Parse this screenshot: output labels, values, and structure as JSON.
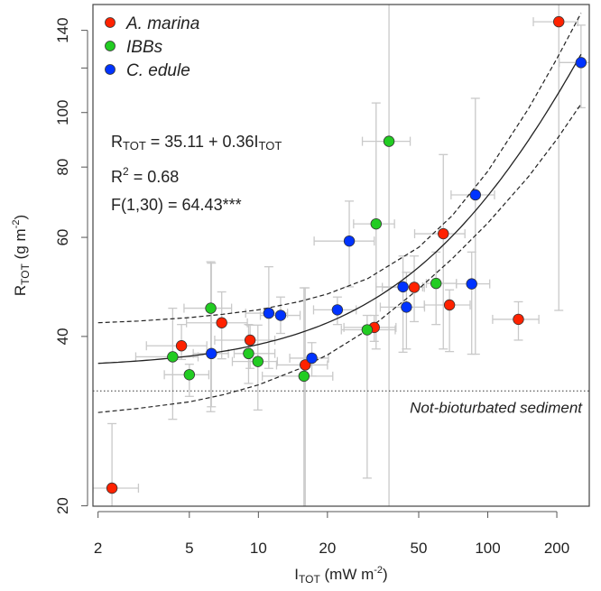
{
  "chart_data": {
    "type": "scatter",
    "scale": {
      "x": "log",
      "y": "log"
    },
    "xlim": [
      1.9,
      277
    ],
    "ylim": [
      19.97,
      155.6
    ],
    "grid": false,
    "xlabel": {
      "main": "I",
      "sub": "TOT",
      "rest": " (mW m",
      "sup": "-2",
      "end": ")"
    },
    "ylabel": {
      "main": "R",
      "sub": "TOT",
      "rest": " (g m",
      "sup": "-2",
      "end": ")"
    },
    "x_ticks": [
      2,
      5,
      10,
      20,
      50,
      100,
      200
    ],
    "x_tick_labels": [
      "2",
      "5",
      "10",
      "20",
      "50",
      "100",
      "200"
    ],
    "y_ticks": [
      20,
      40,
      60,
      80,
      100,
      120,
      140
    ],
    "y_tick_labels": [
      "20",
      "40",
      "60",
      "80",
      "100",
      "",
      "140"
    ],
    "legend": {
      "placement": "top-left",
      "entries": [
        {
          "label": "A. marina",
          "color": "#ff2200"
        },
        {
          "label": "IBBs",
          "color": "#22cc22"
        },
        {
          "label": "C. edule",
          "color": "#0033ff"
        }
      ]
    },
    "series": [
      {
        "name": "A. marina",
        "color": "#ff2200",
        "points": [
          {
            "x": 2.3,
            "y": 21.5,
            "xerr": [
              1.9,
              3.0
            ],
            "yerr": [
              18,
              28
            ]
          },
          {
            "x": 4.62,
            "y": 38.5,
            "xerr": [
              3.25,
              5.96
            ],
            "yerr": [
              36.4,
              42
            ]
          },
          {
            "x": 6.92,
            "y": 42.3,
            "xerr": [
              4.86,
              8.95
            ],
            "yerr": [
              36.5,
              48
            ]
          },
          {
            "x": 9.2,
            "y": 39.4,
            "xerr": [
              6.45,
              11.8
            ],
            "yerr": [
              35.1,
              41.9
            ]
          },
          {
            "x": 16.0,
            "y": 35.6,
            "xerr": [
              12.0,
              20.0
            ],
            "yerr": [
              18,
              48.8
            ]
          },
          {
            "x": 32.0,
            "y": 41.5,
            "xerr": [
              23.6,
              39.8
            ],
            "yerr": [
              39.2,
              43.6
            ]
          },
          {
            "x": 47.8,
            "y": 48.9,
            "xerr": [
              34.7,
              52.9
            ],
            "yerr": [
              42.5,
              55.6
            ]
          },
          {
            "x": 68.1,
            "y": 45.5,
            "xerr": [
              52.9,
              83.8
            ],
            "yerr": [
              37.6,
              48.4
            ]
          },
          {
            "x": 136,
            "y": 42.9,
            "xerr": [
              105,
              167
            ],
            "yerr": [
              39.4,
              46.1
            ]
          },
          {
            "x": 64.0,
            "y": 60.9,
            "xerr": [
              48,
              79.5
            ],
            "yerr": [
              38,
              84.2
            ]
          },
          {
            "x": 204,
            "y": 145,
            "xerr": [
              158,
              247
            ],
            "yerr": [
              44.5,
              160
            ]
          }
        ]
      },
      {
        "name": "IBBs",
        "color": "#22cc22",
        "points": [
          {
            "x": 4.23,
            "y": 36.8,
            "xerr": [
              2.92,
              5.46
            ],
            "yerr": [
              28.5,
              44.9
            ]
          },
          {
            "x": 5.0,
            "y": 34.2,
            "xerr": [
              3.89,
              6.08
            ],
            "yerr": [
              31.3,
              35.7
            ]
          },
          {
            "x": 6.2,
            "y": 44.9,
            "xerr": [
              4.74,
              7.64
            ],
            "yerr": [
              29.4,
              54.3
            ]
          },
          {
            "x": 9.06,
            "y": 37.3,
            "xerr": [
              7.84,
              11.8
            ],
            "yerr": [
              33.0,
              42.0
            ]
          },
          {
            "x": 9.95,
            "y": 36.1,
            "xerr": [
              7.7,
              12.1
            ],
            "yerr": [
              29.6,
              41.9
            ]
          },
          {
            "x": 15.8,
            "y": 34.0,
            "xerr": [
              10.4,
              21.1
            ],
            "yerr": [
              18,
              48.8
            ]
          },
          {
            "x": 29.8,
            "y": 41.1,
            "xerr": [
              23.0,
              39.5
            ],
            "yerr": [
              22.4,
              43.6
            ]
          },
          {
            "x": 59.5,
            "y": 49.7,
            "xerr": [
              54,
              73
            ],
            "yerr": [
              42,
              56.5
            ]
          },
          {
            "x": 32.6,
            "y": 63.4,
            "xerr": [
              26,
              39.2
            ],
            "yerr": [
              38,
              104
            ]
          },
          {
            "x": 37.1,
            "y": 88.9,
            "xerr": [
              28.4,
              45.9
            ],
            "yerr": [
              18,
              160
            ]
          }
        ]
      },
      {
        "name": "C. edule",
        "color": "#0033ff",
        "points": [
          {
            "x": 6.24,
            "y": 37.3,
            "xerr": [
              5.2,
              7.4
            ],
            "yerr": [
              30,
              54
            ]
          },
          {
            "x": 11.1,
            "y": 44.0,
            "xerr": [
              8.8,
              13.4
            ],
            "yerr": [
              35.1,
              53.2
            ]
          },
          {
            "x": 12.5,
            "y": 43.6,
            "xerr": [
              10.2,
              15.2
            ],
            "yerr": [
              40.5,
              47
            ]
          },
          {
            "x": 17.1,
            "y": 36.6,
            "xerr": [
              13.7,
              20.2
            ],
            "yerr": [
              34,
              39
            ]
          },
          {
            "x": 22.1,
            "y": 44.6,
            "xerr": [
              17.4,
              26.7
            ],
            "yerr": [
              42,
              47
            ]
          },
          {
            "x": 42.7,
            "y": 49.0,
            "xerr": [
              32.6,
              52
            ],
            "yerr": [
              37.5,
              55.6
            ]
          },
          {
            "x": 44.2,
            "y": 45.1,
            "xerr": [
              34,
              53
            ],
            "yerr": [
              38,
              52
            ]
          },
          {
            "x": 85.1,
            "y": 49.6,
            "xerr": [
              73,
              102
            ],
            "yerr": [
              37.2,
              56.5
            ]
          },
          {
            "x": 24.9,
            "y": 59.1,
            "xerr": [
              17.5,
              32
            ],
            "yerr": [
              49,
              69.6
            ]
          },
          {
            "x": 88.3,
            "y": 71.4,
            "xerr": [
              69.2,
              107
            ],
            "yerr": [
              37.2,
              106
            ]
          },
          {
            "x": 255,
            "y": 122.7,
            "xerr": [
              205,
              302
            ],
            "yerr": [
              102,
              143
            ]
          }
        ]
      }
    ],
    "fit": {
      "intercept": 35.11,
      "slope": 0.36,
      "x_range": [
        2,
        255
      ]
    },
    "ci_band": {
      "x": [
        2,
        3,
        5,
        7,
        10,
        15,
        20,
        30,
        50,
        70,
        100,
        150,
        200,
        255
      ],
      "lower": [
        29.3,
        29.8,
        30.6,
        31.5,
        32.8,
        35.0,
        37.1,
        41.1,
        48.6,
        55.0,
        63.6,
        76.8,
        89.6,
        103.6
      ],
      "upper": [
        42.3,
        42.6,
        43.2,
        43.8,
        44.6,
        46.1,
        47.6,
        50.7,
        57.6,
        65.6,
        78.6,
        101.4,
        124.6,
        150.2
      ]
    },
    "reference_line": {
      "y": 32.0,
      "label": "Not-bioturbated sediment"
    },
    "annotations": {
      "equation": {
        "lhs": "R",
        "lhs_sub": "TOT",
        "mid": " = 35.11 + 0.36I",
        "rhs_sub": "TOT"
      },
      "r2": {
        "main": "R",
        "sup": "2",
        "rest": " = 0.68"
      },
      "f_stat": "F(1,30) = 64.43***"
    }
  }
}
